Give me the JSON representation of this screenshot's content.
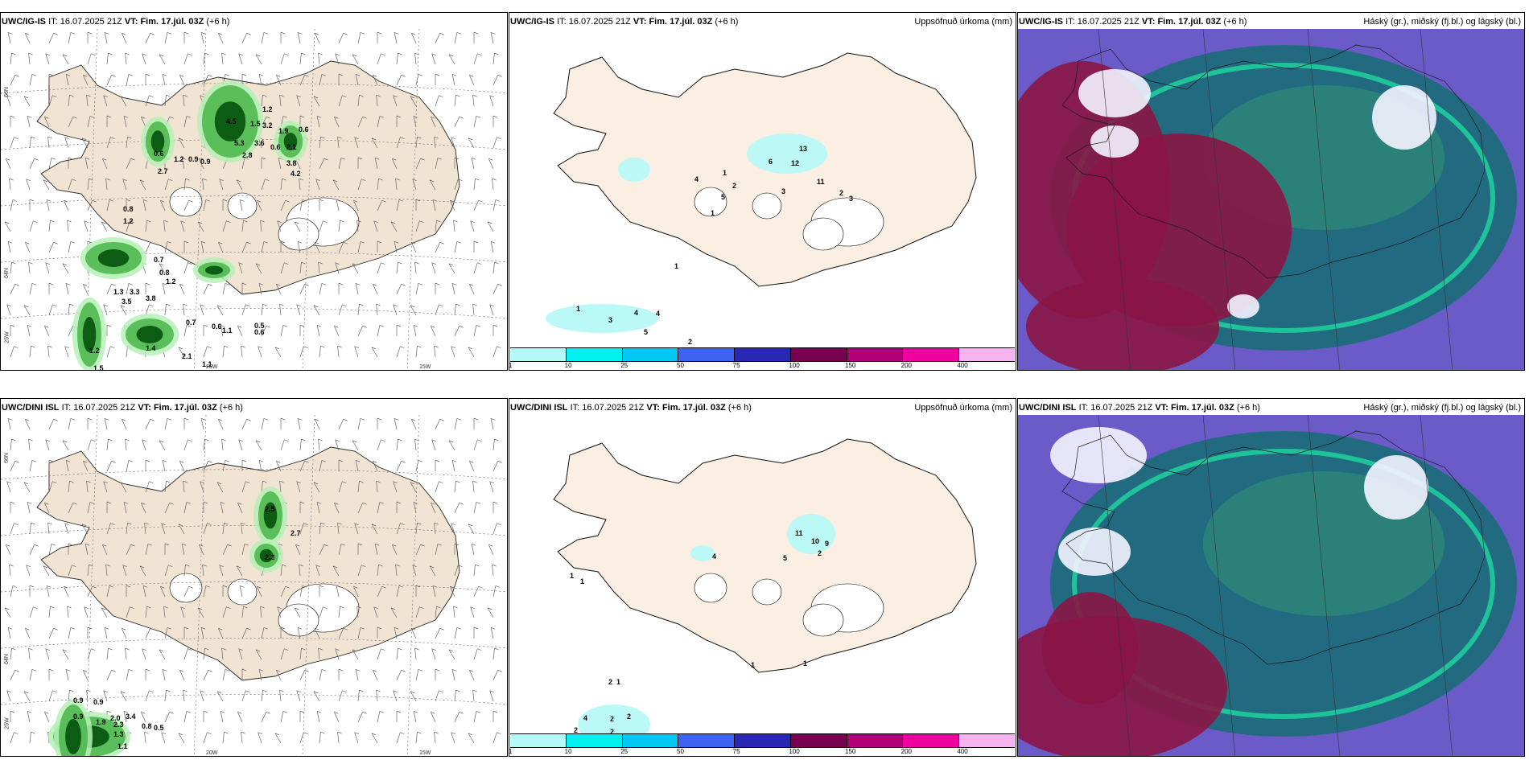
{
  "rows": [
    {
      "model": "UWC/IG-IS",
      "it_label": "IT:",
      "it_value": "16.07.2025 21Z",
      "vt_label": "VT:",
      "vt_value": "Fim. 17.júl. 03Z",
      "lead": "(+6 h)"
    },
    {
      "model": "UWC/DINI ISL",
      "it_label": "IT:",
      "it_value": "16.07.2025 21Z",
      "vt_label": "VT:",
      "vt_value": "Fim. 17.júl. 03Z",
      "lead": "(+6 h)"
    }
  ],
  "precip_title": "Uppsöfnuð úrkoma (mm)",
  "cloud_title": "Háský (gr.), miðský (fj.bl.) og lágský (bl.)",
  "colorbar": {
    "ticks": [
      "1",
      "10",
      "25",
      "50",
      "75",
      "100",
      "150",
      "200",
      "400"
    ],
    "colors": [
      "#b4f8f8",
      "#00f0f0",
      "#00c8f0",
      "#3c64f0",
      "#2828b4",
      "#780050",
      "#b40078",
      "#f000a0",
      "#f4b4f0"
    ]
  },
  "axis_labels": {
    "lat_66": "66N",
    "lat_64": "64N",
    "lon_25": "25W",
    "lon_20": "20W",
    "lon_15": "15W"
  },
  "wind_values_top": [
    "0.6",
    "1.2",
    "0.9",
    "0.9",
    "2.7",
    "1.2",
    "1.5",
    "3.2",
    "1.9",
    "0.6",
    "4.5",
    "5.3",
    "3.6",
    "2.8",
    "3.8",
    "4.2",
    "2.1",
    "0.6",
    "0.8",
    "1.2",
    "0.7",
    "0.8",
    "1.2",
    "1.3",
    "3.3",
    "3.5",
    "3.8",
    "0.7",
    "0.6",
    "1.1",
    "0.5",
    "0.6",
    "1.2",
    "1.4",
    "2.1",
    "1.1",
    "1.5"
  ],
  "wind_values_bottom": [
    "2.5",
    "2.7",
    "2.3",
    "0.9",
    "0.9",
    "0.9",
    "1.9",
    "2.0",
    "3.4",
    "2.3",
    "0.8",
    "0.5",
    "1.3",
    "1.1"
  ],
  "precip_values_top": [
    "13",
    "6",
    "12",
    "1",
    "2",
    "4",
    "5",
    "1",
    "3",
    "11",
    "2",
    "3",
    "1",
    "1",
    "3",
    "4",
    "4",
    "5",
    "2"
  ],
  "precip_values_bottom": [
    "11",
    "10",
    "9",
    "2",
    "4",
    "5",
    "1",
    "1",
    "2",
    "1",
    "1",
    "1",
    "2",
    "4",
    "2",
    "2",
    "2"
  ]
}
